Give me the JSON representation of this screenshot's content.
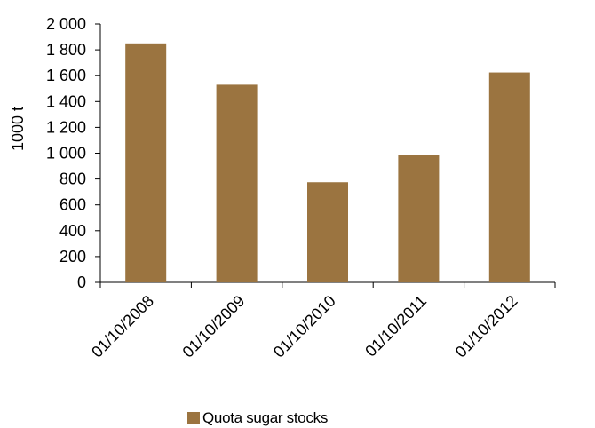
{
  "chart_data": {
    "type": "bar",
    "categories": [
      "01/10/2008",
      "01/10/2009",
      "01/10/2010",
      "01/10/2011",
      "01/10/2012"
    ],
    "series": [
      {
        "name": "Quota sugar stocks",
        "values": [
          1850,
          1530,
          775,
          985,
          1625
        ]
      }
    ],
    "ylabel": "1000 t",
    "ylim": [
      0,
      2000
    ],
    "yticks": [
      0,
      200,
      400,
      600,
      800,
      1000,
      1200,
      1400,
      1600,
      1800,
      2000
    ],
    "ytick_labels": [
      "0",
      "200",
      "400",
      "600",
      "800",
      "1 000",
      "1 200",
      "1 400",
      "1 600",
      "1 800",
      "2 000"
    ],
    "grid": false,
    "legend_position": "bottom",
    "colors": {
      "bar": "#9b7440"
    }
  }
}
